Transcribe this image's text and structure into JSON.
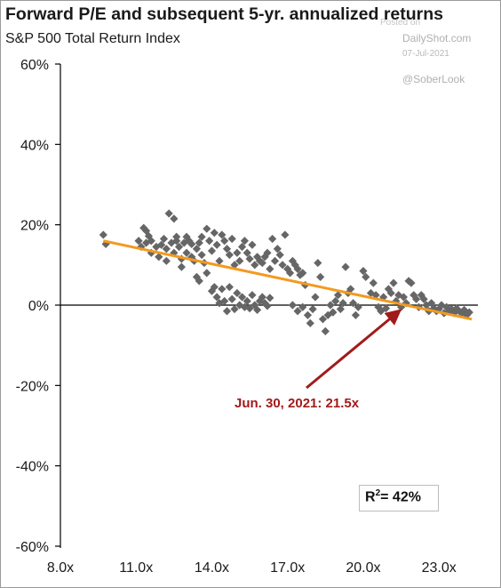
{
  "chart_data": {
    "type": "scatter",
    "title": "Forward P/E and subsequent 5-yr. annualized returns",
    "subtitle": "S&P 500 Total Return Index",
    "xlim": [
      8,
      25
    ],
    "ylim": [
      -60,
      60
    ],
    "x_ticks": [
      8,
      11,
      14,
      17,
      20,
      23
    ],
    "x_tick_labels": [
      "8.0x",
      "11.0x",
      "14.0x",
      "17.0x",
      "20.0x",
      "23.0x"
    ],
    "y_ticks": [
      60,
      40,
      20,
      0,
      -20,
      -40,
      -60
    ],
    "y_tick_labels": [
      "60%",
      "40%",
      "20%",
      "0%",
      "-20%",
      "-40%",
      "-60%"
    ],
    "zero_line": true,
    "grid": false,
    "points_color": "#666666",
    "points": [
      [
        9.7,
        17.5
      ],
      [
        9.8,
        15.2
      ],
      [
        11.1,
        16
      ],
      [
        11.2,
        14.5
      ],
      [
        11.3,
        19.2
      ],
      [
        11.4,
        18.5
      ],
      [
        11.4,
        15.5
      ],
      [
        11.5,
        17.2
      ],
      [
        11.6,
        16
      ],
      [
        11.6,
        13
      ],
      [
        11.8,
        14.5
      ],
      [
        11.9,
        12
      ],
      [
        12,
        15
      ],
      [
        12.1,
        16.5
      ],
      [
        12.2,
        14
      ],
      [
        12.2,
        11
      ],
      [
        12.3,
        22.8
      ],
      [
        12.4,
        15.5
      ],
      [
        12.5,
        21.5
      ],
      [
        12.5,
        13
      ],
      [
        12.6,
        17
      ],
      [
        12.6,
        16
      ],
      [
        12.7,
        14.5
      ],
      [
        12.8,
        11.5
      ],
      [
        12.8,
        9.5
      ],
      [
        12.9,
        15.5
      ],
      [
        13,
        17
      ],
      [
        13,
        13
      ],
      [
        13.1,
        16
      ],
      [
        13.2,
        12
      ],
      [
        13.2,
        15.2
      ],
      [
        13.3,
        11
      ],
      [
        13.4,
        14
      ],
      [
        13.4,
        7
      ],
      [
        13.5,
        15.5
      ],
      [
        13.5,
        6
      ],
      [
        13.6,
        17
      ],
      [
        13.6,
        12.5
      ],
      [
        13.7,
        10.5
      ],
      [
        13.8,
        8
      ],
      [
        13.8,
        19
      ],
      [
        13.9,
        16
      ],
      [
        14,
        13.5
      ],
      [
        14,
        3.5
      ],
      [
        14.1,
        18
      ],
      [
        14.1,
        4.5
      ],
      [
        14.2,
        15
      ],
      [
        14.2,
        2
      ],
      [
        14.3,
        11
      ],
      [
        14.3,
        0.5
      ],
      [
        14.4,
        17.5
      ],
      [
        14.4,
        4
      ],
      [
        14.5,
        16
      ],
      [
        14.5,
        1
      ],
      [
        14.6,
        14
      ],
      [
        14.6,
        -1.5
      ],
      [
        14.7,
        12.5
      ],
      [
        14.7,
        4.5
      ],
      [
        14.8,
        16.5
      ],
      [
        14.8,
        1.5
      ],
      [
        14.9,
        10
      ],
      [
        14.9,
        -1
      ],
      [
        15,
        13
      ],
      [
        15,
        3
      ],
      [
        15.1,
        11
      ],
      [
        15.1,
        0
      ],
      [
        15.2,
        14.5
      ],
      [
        15.2,
        2
      ],
      [
        15.3,
        16
      ],
      [
        15.3,
        -0.5
      ],
      [
        15.4,
        13
      ],
      [
        15.4,
        1
      ],
      [
        15.5,
        11.5
      ],
      [
        15.5,
        -0.8
      ],
      [
        15.6,
        15
      ],
      [
        15.6,
        2.5
      ],
      [
        15.7,
        10
      ],
      [
        15.7,
        0
      ],
      [
        15.8,
        12
      ],
      [
        15.8,
        -1.2
      ],
      [
        15.9,
        11
      ],
      [
        15.9,
        1
      ],
      [
        16,
        10.5
      ],
      [
        16,
        2
      ],
      [
        16.1,
        12
      ],
      [
        16.1,
        0.5
      ],
      [
        16.2,
        13
      ],
      [
        16.2,
        -0.2
      ],
      [
        16.3,
        9
      ],
      [
        16.3,
        1.8
      ],
      [
        16.4,
        16.5
      ],
      [
        16.5,
        11
      ],
      [
        16.6,
        14
      ],
      [
        16.7,
        12.5
      ],
      [
        16.8,
        10
      ],
      [
        16.9,
        17.5
      ],
      [
        17,
        9
      ],
      [
        17.1,
        8
      ],
      [
        17.2,
        11
      ],
      [
        17.3,
        10
      ],
      [
        17.4,
        9
      ],
      [
        17.5,
        7.5
      ],
      [
        17.6,
        8
      ],
      [
        17.7,
        5
      ],
      [
        17.2,
        0
      ],
      [
        17.4,
        -1.5
      ],
      [
        17.6,
        -0.5
      ],
      [
        17.8,
        -2.5
      ],
      [
        17.9,
        -4.5
      ],
      [
        18,
        -1
      ],
      [
        18.1,
        2
      ],
      [
        18.2,
        10.5
      ],
      [
        18.3,
        7
      ],
      [
        18.4,
        -3.5
      ],
      [
        18.5,
        -6.5
      ],
      [
        18.6,
        -2.5
      ],
      [
        18.7,
        0
      ],
      [
        18.8,
        -1.8
      ],
      [
        18.9,
        1
      ],
      [
        19,
        2.5
      ],
      [
        19.1,
        -1
      ],
      [
        19.2,
        0.5
      ],
      [
        19.3,
        9.5
      ],
      [
        19.4,
        3
      ],
      [
        19.5,
        4
      ],
      [
        19.6,
        0.5
      ],
      [
        19.7,
        -2.5
      ],
      [
        19.8,
        -0.5
      ],
      [
        20,
        8.5
      ],
      [
        20.1,
        7
      ],
      [
        20.3,
        3
      ],
      [
        20.4,
        5.5
      ],
      [
        20.5,
        2.5
      ],
      [
        20.6,
        -0.5
      ],
      [
        20.7,
        -1.5
      ],
      [
        20.8,
        2
      ],
      [
        20.9,
        -0.8
      ],
      [
        21,
        4
      ],
      [
        21.1,
        3
      ],
      [
        21.2,
        5.5
      ],
      [
        21.3,
        1
      ],
      [
        21.4,
        2.5
      ],
      [
        21.5,
        -0.5
      ],
      [
        21.6,
        2
      ],
      [
        21.7,
        0.5
      ],
      [
        21.8,
        6
      ],
      [
        21.9,
        5.5
      ],
      [
        22,
        2.5
      ],
      [
        22.1,
        1.5
      ],
      [
        22.2,
        -0.5
      ],
      [
        22.3,
        2.5
      ],
      [
        22.4,
        1.5
      ],
      [
        22.5,
        0
      ],
      [
        22.6,
        -1.5
      ],
      [
        22.7,
        0.5
      ],
      [
        22.8,
        -0.8
      ],
      [
        22.9,
        -1.5
      ],
      [
        23,
        -1
      ],
      [
        23.1,
        0
      ],
      [
        23.2,
        -2
      ],
      [
        23.3,
        -0.5
      ],
      [
        23.4,
        -1.5
      ],
      [
        23.5,
        -1
      ],
      [
        23.6,
        -2
      ],
      [
        23.7,
        -0.8
      ],
      [
        23.8,
        -1.5
      ],
      [
        23.9,
        -2
      ],
      [
        24,
        -1.2
      ],
      [
        24.1,
        -2.5
      ],
      [
        24.2,
        -1.8
      ]
    ],
    "trendline": {
      "color": "#f39a1f",
      "from": [
        9.7,
        16
      ],
      "to": [
        24.3,
        -3.5
      ]
    },
    "annotation": {
      "text": "Jun. 30, 2021: 21.5x",
      "color": "#a11b1b",
      "point": [
        21.5,
        -0.5
      ]
    },
    "r_squared_label": "R",
    "r_squared_sup": "2",
    "r_squared_value": "=   42%"
  },
  "watermark": {
    "posted": "Posted on",
    "source": "DailyShot.com",
    "date": "07-Jul-2021",
    "handle": "@SoberLook"
  }
}
